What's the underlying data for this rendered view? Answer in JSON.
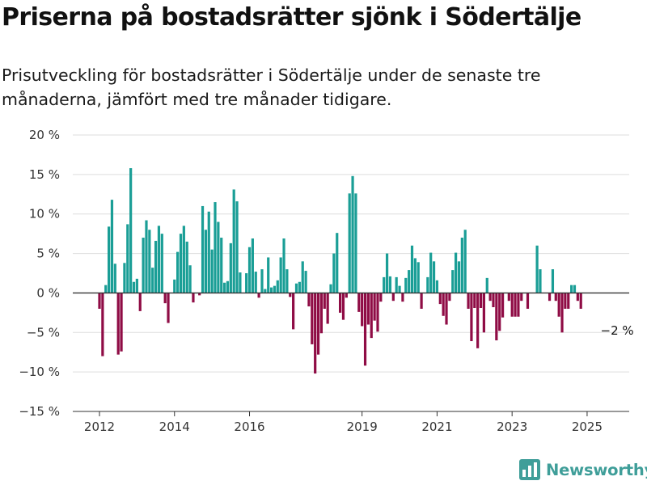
{
  "title": "Priserna på bostadsrätter sjönk i Södertälje",
  "subtitle": "Prisutveckling för bostadsrätter i Södertälje under de senaste tre månaderna, jämfört med tre månader tidigare.",
  "brand": {
    "name": "Newsworthy",
    "icon": "bar-chart-logo-icon",
    "color": "#3f9e99"
  },
  "colors": {
    "positive": "#1a9e96",
    "negative": "#8f0c45",
    "grid": "#dddddd",
    "axis": "#333333"
  },
  "chart_data": {
    "type": "bar",
    "title": "Priserna på bostadsrätter sjönk i Södertälje",
    "subtitle": "Prisutveckling för bostadsrätter i Södertälje under de senaste tre månaderna, jämfört med tre månader tidigare.",
    "xlabel": "",
    "ylabel": "",
    "unit": "%",
    "x_start": "2012-01",
    "frequency": "monthly",
    "ylim": [
      -15,
      20
    ],
    "yticks": [
      -15,
      -10,
      -5,
      0,
      5,
      10,
      15,
      20
    ],
    "ytick_labels": [
      "−15 %",
      "−10 %",
      "−5 %",
      "0 %",
      "5 %",
      "10 %",
      "15 %",
      "20 %"
    ],
    "xtick_labels": [
      "2012",
      "2014",
      "2016",
      "2019",
      "2021",
      "2023",
      "2025"
    ],
    "xtick_dates": [
      "2012-01",
      "2014-01",
      "2016-01",
      "2019-01",
      "2021-01",
      "2023-01",
      "2025-01"
    ],
    "grid": true,
    "annotation": {
      "text": "−2 %",
      "date": "2025-04"
    },
    "values": [
      -2,
      -8,
      1,
      8.4,
      11.8,
      3.7,
      -7.8,
      -7.4,
      3.8,
      8.7,
      15.8,
      1.4,
      1.8,
      -2.3,
      7,
      9.2,
      8,
      3.2,
      6.6,
      8.5,
      7.5,
      -1.3,
      -3.8,
      0,
      1.7,
      5.2,
      7.5,
      8.5,
      6.5,
      3.5,
      -1.2,
      0,
      -0.3,
      11,
      8,
      10.3,
      5.5,
      11.5,
      9,
      7,
      1.3,
      1.5,
      6.3,
      13.1,
      11.6,
      2.6,
      0,
      2.5,
      5.8,
      6.9,
      2.7,
      -0.6,
      3,
      0.5,
      4.5,
      0.7,
      0.9,
      1.6,
      4.5,
      6.9,
      3,
      -0.5,
      -4.6,
      1.2,
      1.4,
      4,
      2.8,
      -1.7,
      -6.5,
      -10.2,
      -7.8,
      -5.1,
      -2,
      -3.9,
      1.1,
      5,
      7.6,
      -2.5,
      -3.4,
      -0.6,
      12.6,
      14.8,
      12.6,
      -2.4,
      -4.2,
      -9.2,
      -4,
      -5.7,
      -3.5,
      -4.9,
      -1.1,
      2,
      5,
      2.1,
      -1,
      2,
      0.9,
      -1.1,
      1.9,
      2.9,
      6,
      4.4,
      3.9,
      -2,
      0,
      2,
      5.1,
      4,
      1.6,
      -1.4,
      -2.9,
      -4,
      -1,
      2.9,
      5.1,
      4,
      7,
      8,
      -2,
      -6.1,
      -1.9,
      -7,
      -1.9,
      -5,
      1.9,
      -1,
      -1.8,
      -6,
      -4.8,
      -3.1,
      0,
      -1,
      -3,
      -3,
      -3,
      -1,
      0,
      -2,
      0,
      0,
      6,
      3,
      0,
      0,
      -1,
      3,
      -1,
      -3,
      -5,
      -2,
      -2,
      1,
      1,
      -1,
      -2
    ]
  }
}
